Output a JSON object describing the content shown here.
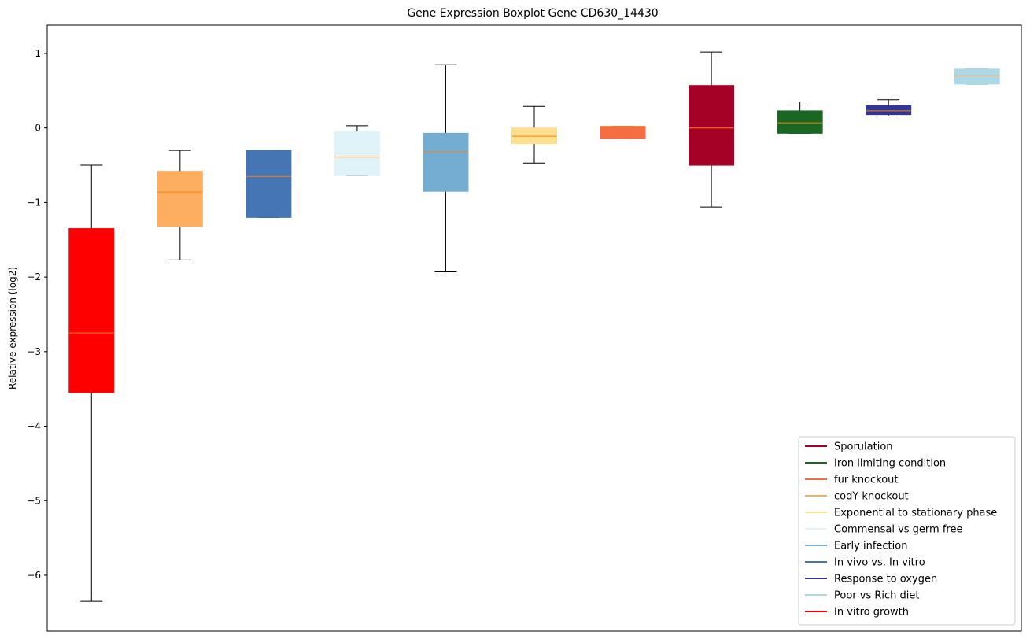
{
  "chart_data": {
    "type": "boxplot",
    "title": "Gene Expression Boxplot Gene CD630_14430",
    "xlabel": "",
    "ylabel": "Relative expression (log2)",
    "ylim": [
      -6.75,
      1.38
    ],
    "yticks": [
      1,
      0,
      -1,
      -2,
      -3,
      -4,
      -5,
      -6
    ],
    "ytick_labels": [
      "1",
      "0",
      "−1",
      "−2",
      "−3",
      "−4",
      "−5",
      "−6"
    ],
    "median_color": "#ff7f0e",
    "whisker_color": "#000000",
    "legend_position": "lower-right",
    "boxes": [
      {
        "name": "In vitro growth",
        "color": "#ff0000",
        "whislo": -6.35,
        "q1": -3.55,
        "med": -2.75,
        "q3": -1.35,
        "whishi": -0.5
      },
      {
        "name": "codY knockout",
        "color": "#fdae61",
        "whislo": -1.77,
        "q1": -1.32,
        "med": -0.86,
        "q3": -0.58,
        "whishi": -0.3
      },
      {
        "name": "In vivo vs. In vitro",
        "color": "#4575b4",
        "whislo": -1.2,
        "q1": -1.2,
        "med": -0.65,
        "q3": -0.3,
        "whishi": -0.3
      },
      {
        "name": "Commensal vs germ free",
        "color": "#e0f3f8",
        "whislo": -0.64,
        "q1": -0.64,
        "med": -0.39,
        "q3": -0.05,
        "whishi": 0.03
      },
      {
        "name": "Early infection",
        "color": "#74add1",
        "whislo": -1.93,
        "q1": -0.85,
        "med": -0.32,
        "q3": -0.07,
        "whishi": 0.85
      },
      {
        "name": "Exponential to stationary phase",
        "color": "#fee090",
        "whislo": -0.47,
        "q1": -0.21,
        "med": -0.11,
        "q3": 0.0,
        "whishi": 0.29
      },
      {
        "name": "fur knockout",
        "color": "#f46d43",
        "whislo": -0.14,
        "q1": -0.14,
        "med": 0.02,
        "q3": 0.02,
        "whishi": 0.02
      },
      {
        "name": "Sporulation",
        "color": "#a50026",
        "whislo": -1.06,
        "q1": -0.5,
        "med": 0.0,
        "q3": 0.57,
        "whishi": 1.02
      },
      {
        "name": "Iron limiting condition",
        "color": "#1a6623",
        "whislo": -0.07,
        "q1": -0.07,
        "med": 0.07,
        "q3": 0.23,
        "whishi": 0.35
      },
      {
        "name": "Response to oxygen",
        "color": "#313695",
        "whislo": 0.16,
        "q1": 0.18,
        "med": 0.23,
        "q3": 0.3,
        "whishi": 0.38
      },
      {
        "name": "Poor vs Rich diet",
        "color": "#abd9e9",
        "whislo": 0.59,
        "q1": 0.59,
        "med": 0.7,
        "q3": 0.79,
        "whishi": 0.79
      }
    ],
    "legend": [
      {
        "label": "Sporulation",
        "color": "#a50026"
      },
      {
        "label": "Iron limiting condition",
        "color": "#1a6623"
      },
      {
        "label": "fur knockout",
        "color": "#f46d43"
      },
      {
        "label": "codY knockout",
        "color": "#fdae61"
      },
      {
        "label": "Exponential to stationary phase",
        "color": "#fee090"
      },
      {
        "label": "Commensal vs germ free",
        "color": "#e0f3f8"
      },
      {
        "label": "Early infection",
        "color": "#74add1"
      },
      {
        "label": "In vivo vs. In vitro",
        "color": "#4575b4"
      },
      {
        "label": "Response to oxygen",
        "color": "#313695"
      },
      {
        "label": "Poor vs Rich diet",
        "color": "#abd9e9"
      },
      {
        "label": "In vitro growth",
        "color": "#ff0000"
      }
    ]
  }
}
